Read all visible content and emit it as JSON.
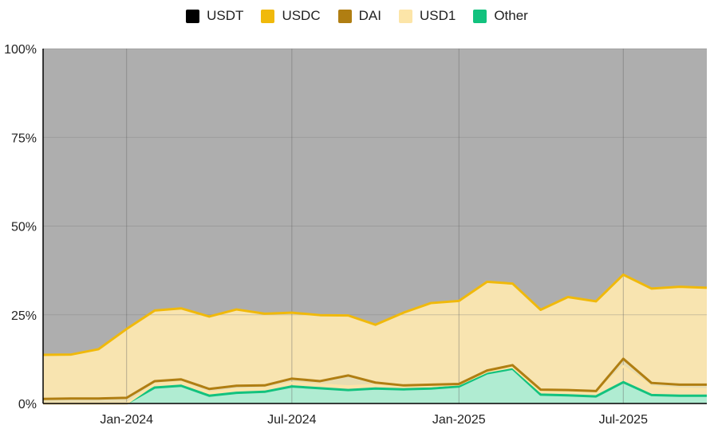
{
  "chart_data": {
    "type": "area",
    "stacked": true,
    "normalized": true,
    "x": [
      "2023-10-01",
      "2023-11-01",
      "2023-12-01",
      "2024-01-01",
      "2024-02-01",
      "2024-03-01",
      "2024-04-01",
      "2024-05-01",
      "2024-06-01",
      "2024-07-01",
      "2024-08-01",
      "2024-09-01",
      "2024-10-01",
      "2024-11-01",
      "2024-12-01",
      "2025-01-01",
      "2025-02-01",
      "2025-03-01",
      "2025-04-01",
      "2025-05-01",
      "2025-06-01",
      "2025-07-01",
      "2025-08-01",
      "2025-09-01",
      "2025-10-01"
    ],
    "x_tick_labels": [
      "Jan-2024",
      "Jul-2024",
      "Jan-2025",
      "Jul-2025"
    ],
    "y_tick_labels": [
      "0%",
      "25%",
      "50%",
      "75%",
      "100%"
    ],
    "ylim": [
      0,
      100
    ],
    "grid": true,
    "legend_position": "top",
    "series": [
      {
        "name": "Other",
        "color": "#12c27e",
        "fill": "#b0ecd2",
        "values": [
          0.0,
          0.0,
          0.0,
          0.0,
          4.5,
          5.0,
          2.2,
          3.0,
          3.3,
          4.8,
          4.3,
          3.8,
          4.2,
          4.0,
          4.2,
          4.8,
          8.5,
          9.8,
          2.5,
          2.3,
          2.0,
          6.0,
          2.4,
          2.2,
          2.2
        ]
      },
      {
        "name": "USD1",
        "color": "#fce5a8",
        "fill": "#f7e3b0",
        "values": [
          0.0,
          0.0,
          0.0,
          0.0,
          1.0,
          1.0,
          0.8,
          1.0,
          1.0,
          1.0,
          1.0,
          1.0,
          1.0,
          0.8,
          0.7,
          0.6,
          0.5,
          0.5,
          0.8,
          0.9,
          0.9,
          4.5,
          2.3,
          2.0,
          1.8
        ]
      },
      {
        "name": "DAI",
        "color": "#b07e12",
        "fill": "#e8ddb2",
        "values": [
          1.3,
          1.4,
          1.4,
          1.6,
          0.8,
          0.8,
          1.1,
          1.0,
          0.8,
          1.2,
          1.0,
          3.1,
          0.7,
          0.3,
          0.4,
          0.1,
          0.3,
          0.5,
          0.6,
          0.6,
          0.6,
          2.1,
          1.1,
          1.1,
          1.3
        ]
      },
      {
        "name": "USDC",
        "color": "#f0b90b",
        "fill": "#f8e4b0",
        "values": [
          12.4,
          12.4,
          13.9,
          19.4,
          19.9,
          20.0,
          20.4,
          21.5,
          20.2,
          18.6,
          18.6,
          16.9,
          16.3,
          20.5,
          23.0,
          23.4,
          25.0,
          23.0,
          22.5,
          26.2,
          25.3,
          23.7,
          26.6,
          27.6,
          27.3
        ]
      },
      {
        "name": "USDT",
        "color": "#000000",
        "fill": "#aeaeae",
        "values": [
          86.3,
          86.2,
          84.7,
          79.0,
          73.8,
          73.2,
          75.5,
          73.5,
          74.7,
          74.4,
          75.1,
          75.2,
          77.8,
          74.4,
          71.7,
          71.1,
          65.7,
          66.2,
          73.6,
          70.0,
          71.2,
          63.7,
          67.6,
          67.1,
          67.4
        ]
      }
    ]
  }
}
